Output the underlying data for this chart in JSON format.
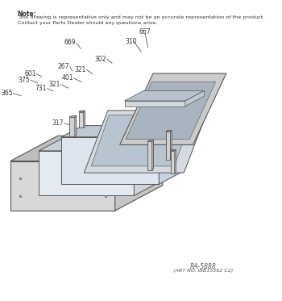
{
  "note_line1": "Note:",
  "note_line2": "This drawing is representative only and may not be an accurate representation of the product.",
  "note_line3": "Contact your Parts Dealer should any questions arise.",
  "footer_line1": "RA-5888",
  "footer_line2": "(ART NO. WB15362 C2)",
  "bg_color": "#ffffff",
  "line_color": "#555555",
  "text_color": "#333333"
}
